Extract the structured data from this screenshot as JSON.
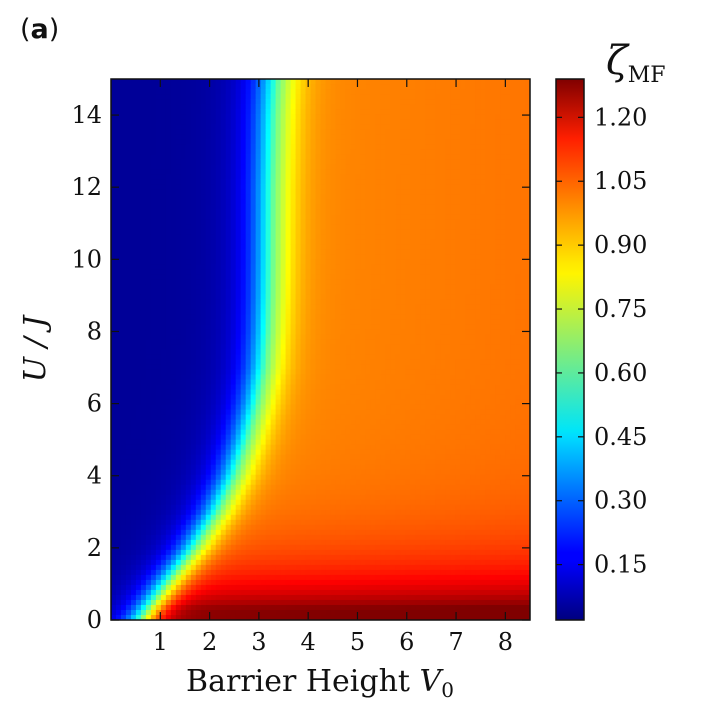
{
  "panel_label": "a",
  "chart_data": {
    "type": "heatmap",
    "xlabel": "Barrier Height",
    "xlabel_symbol": "V",
    "xlabel_sub": "0",
    "ylabel": "U / J",
    "xlim": [
      0,
      8.5
    ],
    "ylim": [
      0,
      15
    ],
    "xticks": [
      1,
      2,
      3,
      4,
      5,
      6,
      7,
      8
    ],
    "yticks": [
      0,
      2,
      4,
      6,
      8,
      10,
      12,
      14
    ],
    "colorbar": {
      "label": "ζ",
      "label_sub": "MF",
      "range": [
        0.02,
        1.29
      ],
      "ticks": [
        "0.15",
        "0.30",
        "0.45",
        "0.60",
        "0.75",
        "0.90",
        "1.05",
        "1.20"
      ],
      "colormap": "jet"
    },
    "boundary_curve": {
      "description_values_U": [
        0,
        1,
        2,
        3,
        4,
        5,
        6,
        7,
        8,
        9,
        10,
        12,
        14,
        15
      ],
      "V0": [
        0.7,
        1.2,
        1.75,
        2.2,
        2.55,
        2.8,
        3.0,
        3.15,
        3.22,
        3.26,
        3.28,
        3.3,
        3.35,
        3.4
      ]
    },
    "insulator_value": 0.05,
    "superfluid_value_top": 0.96,
    "superfluid_value_bottom": 1.27
  }
}
